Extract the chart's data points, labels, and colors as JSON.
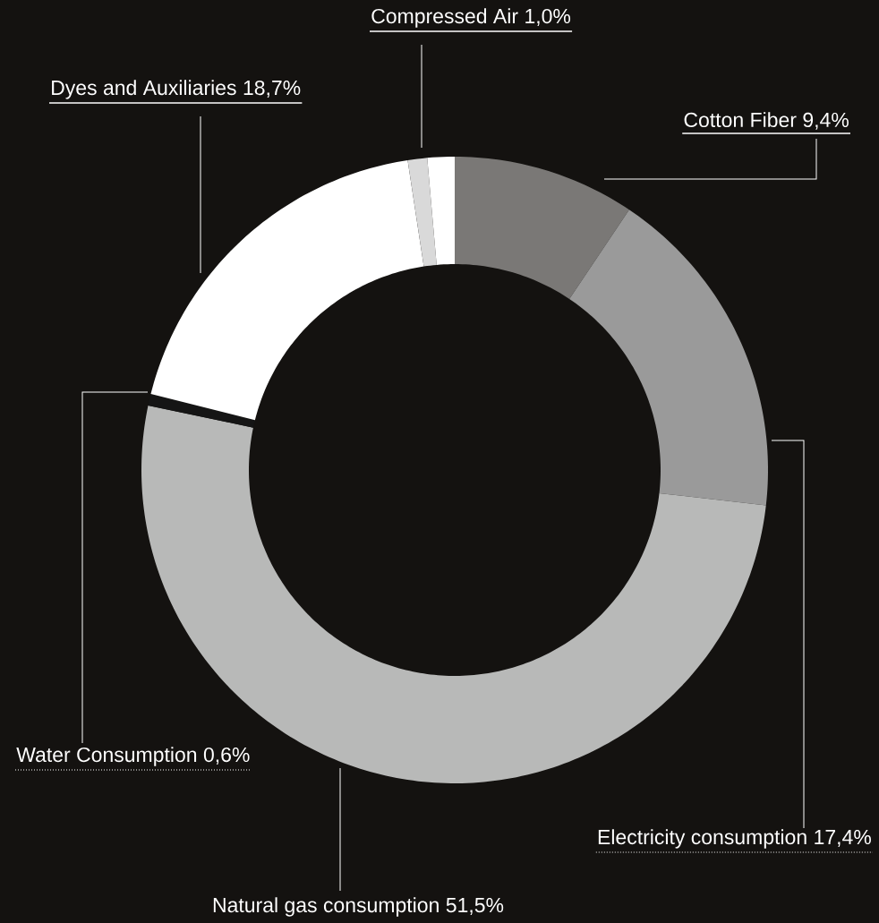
{
  "chart_data": {
    "type": "donut",
    "categories": [
      "Cotton Fiber",
      "Electricity consumption",
      "Natural gas consumption",
      "Water Consumption",
      "Dyes and Auxiliaries",
      "Compressed Air",
      null
    ],
    "values": [
      9.4,
      17.4,
      51.5,
      0.6,
      18.7,
      1.0,
      1.4
    ],
    "value_labels": [
      "9,4%",
      "17,4%",
      "51,5%",
      "0,6%",
      "18,7%",
      "1,0%",
      null
    ],
    "colors": [
      "#7a7876",
      "#9a9a9a",
      "#b8b9b8",
      "#151515",
      "#ffffff",
      "#d9d9d9",
      "#ffffff"
    ]
  }
}
